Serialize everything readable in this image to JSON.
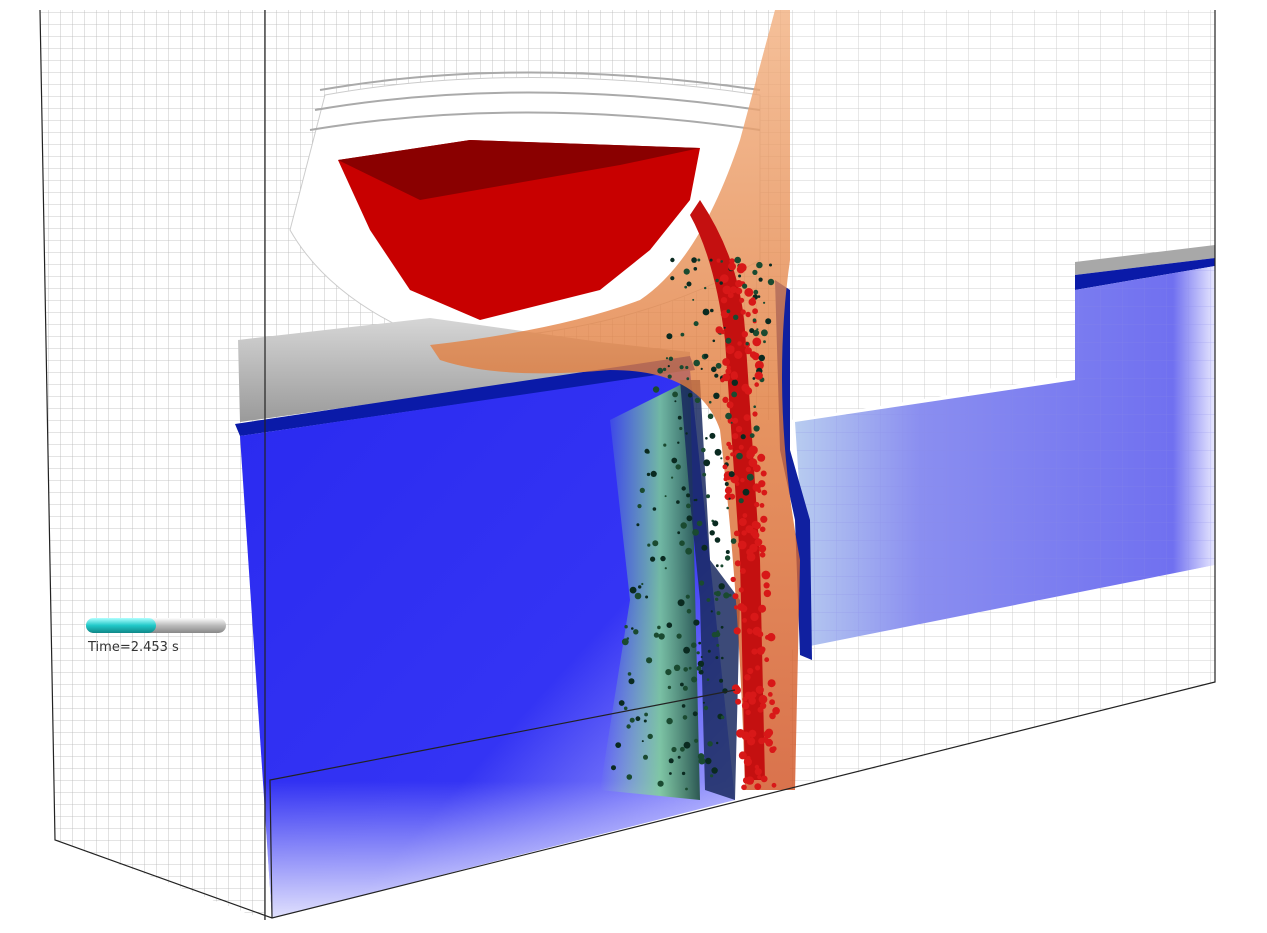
{
  "time_label": "Time=2.453 s"
}
